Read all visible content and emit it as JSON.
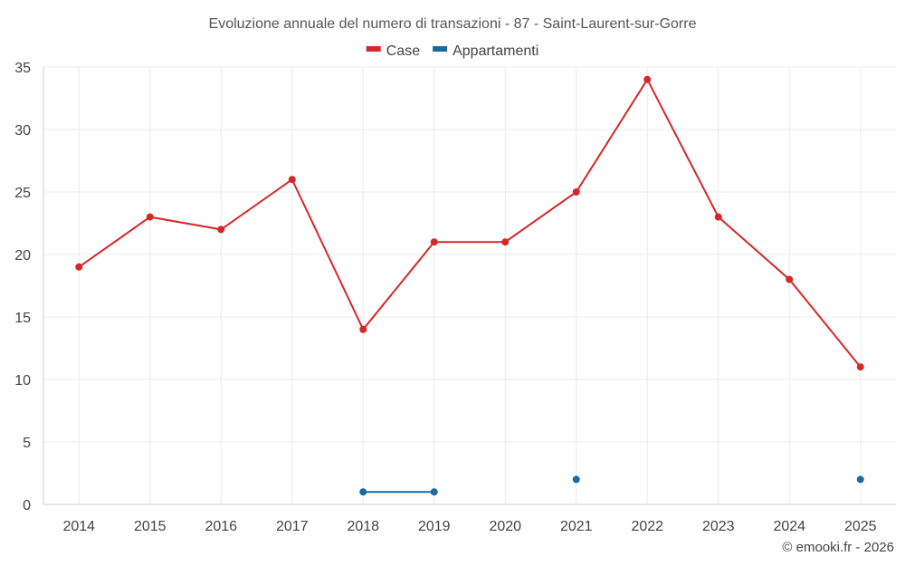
{
  "chart_data": {
    "type": "line",
    "title": "Evoluzione annuale del numero di transazioni - 87 - Saint-Laurent-sur-Gorre",
    "xlabel": "",
    "ylabel": "",
    "categories": [
      "2014",
      "2015",
      "2016",
      "2017",
      "2018",
      "2019",
      "2020",
      "2021",
      "2022",
      "2023",
      "2024",
      "2025"
    ],
    "ylim": [
      0,
      35
    ],
    "yticks": [
      0,
      5,
      10,
      15,
      20,
      25,
      30,
      35
    ],
    "grid": true,
    "legend_position": "top-center",
    "series": [
      {
        "name": "Case",
        "color": "#d62728",
        "values": [
          19,
          23,
          22,
          26,
          14,
          21,
          21,
          25,
          34,
          23,
          18,
          11
        ]
      },
      {
        "name": "Appartamenti",
        "color": "#1a6aa0",
        "values": [
          null,
          null,
          null,
          null,
          1,
          1,
          null,
          2,
          null,
          null,
          null,
          2
        ]
      }
    ]
  },
  "credit": "© emooki.fr - 2026"
}
